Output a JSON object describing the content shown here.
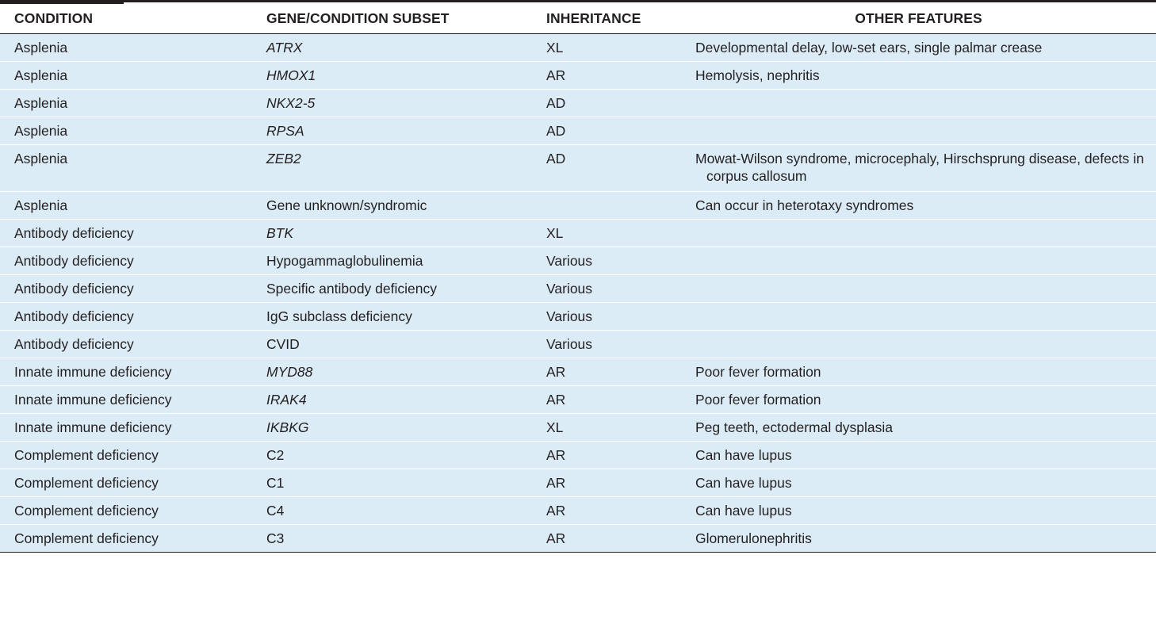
{
  "table": {
    "headers": {
      "condition": "CONDITION",
      "gene": "GENE/CONDITION SUBSET",
      "inheritance": "INHERITANCE",
      "other": "OTHER FEATURES"
    },
    "rows": [
      {
        "condition": "Asplenia",
        "gene": "ATRX",
        "gene_italic": true,
        "inheritance": "XL",
        "other": "Developmental delay, low-set ears, single palmar crease"
      },
      {
        "condition": "Asplenia",
        "gene": "HMOX1",
        "gene_italic": true,
        "inheritance": "AR",
        "other": "Hemolysis, nephritis"
      },
      {
        "condition": "Asplenia",
        "gene": "NKX2-5",
        "gene_italic": true,
        "inheritance": "AD",
        "other": ""
      },
      {
        "condition": "Asplenia",
        "gene": "RPSA",
        "gene_italic": true,
        "inheritance": "AD",
        "other": ""
      },
      {
        "condition": "Asplenia",
        "gene": "ZEB2",
        "gene_italic": true,
        "inheritance": "AD",
        "other": "Mowat-Wilson syndrome, microcephaly, Hirschsprung disease, defects in corpus callosum"
      },
      {
        "condition": "Asplenia",
        "gene": "Gene unknown/syndromic",
        "gene_italic": false,
        "inheritance": "",
        "other": "Can occur in heterotaxy syndromes"
      },
      {
        "condition": "Antibody deficiency",
        "gene": "BTK",
        "gene_italic": true,
        "inheritance": "XL",
        "other": ""
      },
      {
        "condition": "Antibody deficiency",
        "gene": "Hypogammaglobulinemia",
        "gene_italic": false,
        "inheritance": "Various",
        "other": ""
      },
      {
        "condition": "Antibody deficiency",
        "gene": "Specific antibody deficiency",
        "gene_italic": false,
        "inheritance": "Various",
        "other": ""
      },
      {
        "condition": "Antibody deficiency",
        "gene": "IgG subclass deficiency",
        "gene_italic": false,
        "inheritance": "Various",
        "other": ""
      },
      {
        "condition": "Antibody deficiency",
        "gene": "CVID",
        "gene_italic": false,
        "inheritance": "Various",
        "other": ""
      },
      {
        "condition": "Innate immune deficiency",
        "gene": "MYD88",
        "gene_italic": true,
        "inheritance": "AR",
        "other": "Poor fever formation"
      },
      {
        "condition": "Innate immune deficiency",
        "gene": "IRAK4",
        "gene_italic": true,
        "inheritance": "AR",
        "other": "Poor fever formation"
      },
      {
        "condition": "Innate immune deficiency",
        "gene": "IKBKG",
        "gene_italic": true,
        "inheritance": "XL",
        "other": "Peg teeth, ectodermal dysplasia"
      },
      {
        "condition": "Complement deficiency",
        "gene": "C2",
        "gene_italic": false,
        "inheritance": "AR",
        "other": "Can have lupus"
      },
      {
        "condition": "Complement deficiency",
        "gene": "C1",
        "gene_italic": false,
        "inheritance": "AR",
        "other": "Can have lupus"
      },
      {
        "condition": "Complement deficiency",
        "gene": "C4",
        "gene_italic": false,
        "inheritance": "AR",
        "other": "Can have lupus"
      },
      {
        "condition": "Complement deficiency",
        "gene": "C3",
        "gene_italic": false,
        "inheritance": "AR",
        "other": "Glomerulonephritis"
      }
    ]
  }
}
